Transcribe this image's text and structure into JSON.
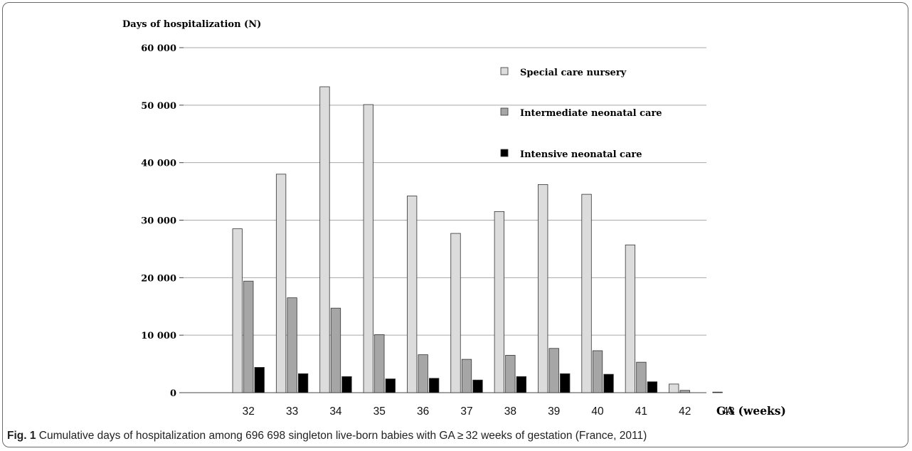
{
  "chart_data": {
    "type": "bar",
    "ylabel": "Days of hospitalization (N)",
    "xlabel": "GA (weeks)",
    "categories": [
      "32",
      "33",
      "34",
      "35",
      "36",
      "37",
      "38",
      "39",
      "40",
      "41",
      "42",
      "43"
    ],
    "yticks": [
      "0",
      "10 000",
      "20 000",
      "30 000",
      "40 000",
      "50 000",
      "60 000"
    ],
    "ylim": [
      0,
      60000
    ],
    "grid": true,
    "legend_position": "top-right",
    "series": [
      {
        "name": "Special care nursery",
        "color": "#dcdcdc",
        "values": [
          28500,
          38000,
          53200,
          50100,
          34200,
          27700,
          31500,
          36200,
          34500,
          25700,
          1500,
          100
        ]
      },
      {
        "name": "Intermediate neonatal care",
        "color": "#a6a6a6",
        "values": [
          19400,
          16500,
          14700,
          10100,
          6600,
          5800,
          6500,
          7700,
          7300,
          5300,
          400,
          0
        ]
      },
      {
        "name": "Intensive neonatal care",
        "color": "#000000",
        "values": [
          4400,
          3300,
          2800,
          2400,
          2500,
          2200,
          2800,
          3300,
          3200,
          1900,
          0,
          0
        ]
      }
    ]
  },
  "caption": {
    "label": "Fig. 1",
    "text": " Cumulative days of hospitalization among 696 698 singleton live-born babies with GA ≥ 32 weeks of gestation (France, 2011)"
  }
}
